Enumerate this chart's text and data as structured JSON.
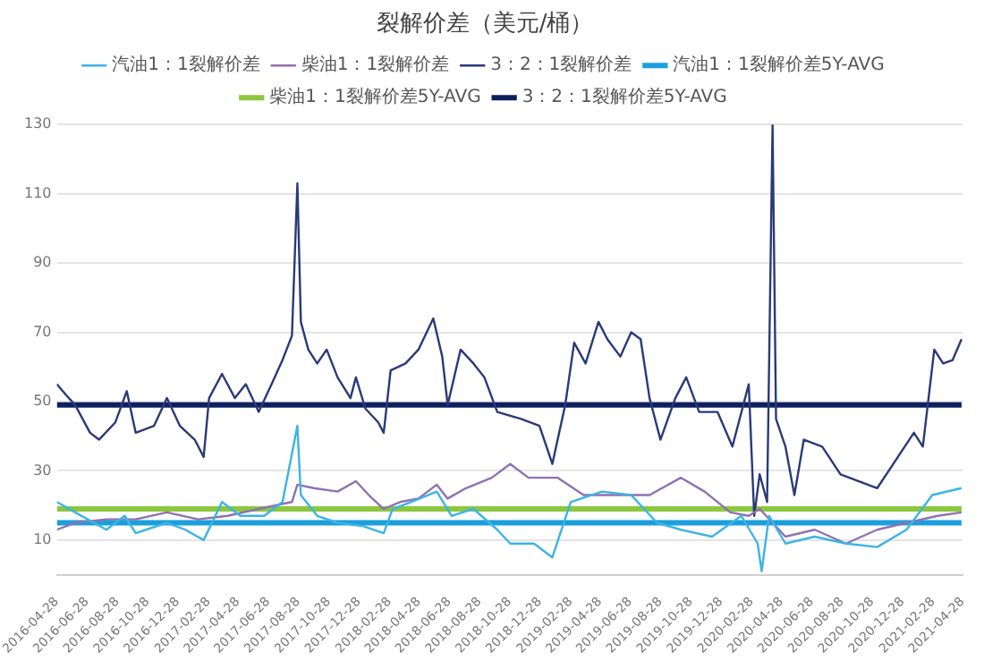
{
  "chart_data": {
    "type": "line",
    "title": "裂解价差（美元/桶）",
    "xlim": [
      "2016-04-28",
      "2021-04-28"
    ],
    "xticks": [
      "2016-04-28",
      "2016-06-28",
      "2016-08-28",
      "2016-10-28",
      "2016-12-28",
      "2017-02-28",
      "2017-04-28",
      "2017-06-28",
      "2017-08-28",
      "2017-10-28",
      "2017-12-28",
      "2018-02-28",
      "2018-04-28",
      "2018-06-28",
      "2018-08-28",
      "2018-10-28",
      "2018-12-28",
      "2019-02-28",
      "2019-04-28",
      "2019-06-28",
      "2019-08-28",
      "2019-10-28",
      "2019-12-28",
      "2020-02-28",
      "2020-04-28",
      "2020-06-28",
      "2020-08-28",
      "2020-10-28",
      "2020-12-28",
      "2021-02-28",
      "2021-04-28"
    ],
    "ylim": [
      0,
      130
    ],
    "yticks": [
      10,
      30,
      50,
      70,
      90,
      110,
      130
    ],
    "grid": "y",
    "legend": "top",
    "marker": "none",
    "line_style": "solid",
    "series": [
      {
        "name": "汽油1：1裂解价差",
        "color": "#3cb4e6",
        "x": [
          "2016-04-28",
          "2016-06-04",
          "2016-08-06",
          "2016-09-12",
          "2016-10-04",
          "2016-12-06",
          "2017-01-12",
          "2017-02-18",
          "2017-03-27",
          "2017-05-03",
          "2017-06-20",
          "2017-07-27",
          "2017-08-26",
          "2017-09-02",
          "2017-10-05",
          "2017-11-15",
          "2018-01-06",
          "2018-02-16",
          "2018-03-06",
          "2018-04-12",
          "2018-06-03",
          "2018-07-03",
          "2018-08-16",
          "2018-10-03",
          "2018-10-29",
          "2018-12-16",
          "2019-01-22",
          "2019-02-28",
          "2019-05-02",
          "2019-06-30",
          "2019-08-21",
          "2019-10-08",
          "2019-12-10",
          "2020-02-07",
          "2020-03-11",
          "2020-03-19",
          "2020-04-03",
          "2020-05-06",
          "2020-07-04",
          "2020-09-05",
          "2020-11-07",
          "2021-01-05",
          "2021-02-26",
          "2021-04-26"
        ],
        "values": [
          21,
          18,
          13,
          17,
          12,
          15,
          13,
          10,
          21,
          17,
          17,
          21,
          43,
          23,
          17,
          15,
          14,
          12,
          19,
          21,
          24,
          17,
          19,
          13,
          9,
          9,
          5,
          21,
          24,
          23,
          15,
          13,
          11,
          17,
          9,
          1,
          17,
          9,
          11,
          9,
          8,
          13,
          23,
          25
        ]
      },
      {
        "name": "汽油1：1裂解价差5Y-AVG",
        "color": "#1a9fdc",
        "x": [
          "2016-04-28",
          "2021-04-26"
        ],
        "values": [
          15,
          15
        ]
      },
      {
        "name": "柴油1：1裂解价差",
        "color": "#8e72b0",
        "x": [
          "2016-04-28",
          "2016-06-04",
          "2016-08-06",
          "2016-10-04",
          "2016-12-06",
          "2017-02-07",
          "2017-04-07",
          "2017-06-09",
          "2017-08-15",
          "2017-08-26",
          "2017-09-28",
          "2017-11-15",
          "2017-12-22",
          "2018-01-17",
          "2018-02-16",
          "2018-03-21",
          "2018-04-27",
          "2018-06-03",
          "2018-06-25",
          "2018-08-01",
          "2018-09-22",
          "2018-10-29",
          "2018-12-05",
          "2019-02-02",
          "2019-03-26",
          "2019-05-24",
          "2019-08-06",
          "2019-10-08",
          "2019-11-25",
          "2020-01-16",
          "2020-02-22",
          "2020-03-15",
          "2020-05-06",
          "2020-07-04",
          "2020-09-05",
          "2020-11-07",
          "2021-01-05",
          "2021-03-09",
          "2021-04-26"
        ],
        "values": [
          13,
          15,
          16,
          16,
          18,
          16,
          17,
          19,
          21,
          26,
          25,
          24,
          27,
          23,
          19,
          21,
          22,
          26,
          22,
          25,
          28,
          32,
          28,
          28,
          23,
          23,
          23,
          28,
          24,
          18,
          17,
          19,
          11,
          13,
          9,
          13,
          15,
          17,
          18
        ]
      },
      {
        "name": "柴油1：1裂解价差5Y-AVG",
        "color": "#8dc63f",
        "x": [
          "2016-04-28",
          "2021-04-26"
        ],
        "values": [
          19,
          19
        ]
      },
      {
        "name": "3：2：1裂解价差",
        "color": "#2a3a78",
        "x": [
          "2016-04-28",
          "2016-05-16",
          "2016-06-04",
          "2016-07-04",
          "2016-07-22",
          "2016-08-24",
          "2016-09-16",
          "2016-10-04",
          "2016-11-10",
          "2016-12-06",
          "2017-01-01",
          "2017-01-31",
          "2017-02-18",
          "2017-03-01",
          "2017-03-27",
          "2017-04-22",
          "2017-05-14",
          "2017-06-09",
          "2017-07-05",
          "2017-07-27",
          "2017-08-15",
          "2017-08-26",
          "2017-09-02",
          "2017-09-17",
          "2017-10-05",
          "2017-10-24",
          "2017-11-15",
          "2017-12-11",
          "2017-12-22",
          "2018-01-10",
          "2018-02-05",
          "2018-02-16",
          "2018-03-02",
          "2018-04-01",
          "2018-04-27",
          "2018-05-27",
          "2018-06-14",
          "2018-06-25",
          "2018-07-21",
          "2018-08-16",
          "2018-09-07",
          "2018-10-03",
          "2018-11-20",
          "2018-12-27",
          "2019-01-22",
          "2019-02-17",
          "2019-03-07",
          "2019-03-30",
          "2019-04-25",
          "2019-05-13",
          "2019-06-08",
          "2019-06-30",
          "2019-07-19",
          "2019-08-06",
          "2019-08-28",
          "2019-09-27",
          "2019-10-19",
          "2019-11-14",
          "2019-12-21",
          "2020-01-20",
          "2020-02-22",
          "2020-03-04",
          "2020-03-15",
          "2020-03-30",
          "2020-04-10",
          "2020-04-17",
          "2020-05-06",
          "2020-05-24",
          "2020-06-12",
          "2020-07-19",
          "2020-08-25",
          "2020-10-01",
          "2020-11-07",
          "2020-12-14",
          "2021-01-20",
          "2021-02-07",
          "2021-03-02",
          "2021-03-20",
          "2021-04-08",
          "2021-04-26"
        ],
        "values": [
          55,
          52,
          49,
          41,
          39,
          44,
          53,
          41,
          43,
          51,
          43,
          39,
          34,
          51,
          58,
          51,
          55,
          47,
          55,
          62,
          69,
          113,
          73,
          65,
          61,
          65,
          57,
          51,
          57,
          48,
          44,
          41,
          59,
          61,
          65,
          74,
          63,
          49,
          65,
          61,
          57,
          47,
          45,
          43,
          32,
          49,
          67,
          61,
          73,
          68,
          63,
          70,
          68,
          51,
          39,
          51,
          57,
          47,
          47,
          37,
          55,
          17,
          29,
          21,
          130,
          45,
          37,
          23,
          39,
          37,
          29,
          27,
          25,
          33,
          41,
          37,
          65,
          61,
          62,
          68
        ]
      },
      {
        "name": "3：2：1裂解价差5Y-AVG",
        "color": "#0d1f5c",
        "x": [
          "2016-04-28",
          "2021-04-26"
        ],
        "values": [
          49,
          49
        ]
      }
    ]
  }
}
